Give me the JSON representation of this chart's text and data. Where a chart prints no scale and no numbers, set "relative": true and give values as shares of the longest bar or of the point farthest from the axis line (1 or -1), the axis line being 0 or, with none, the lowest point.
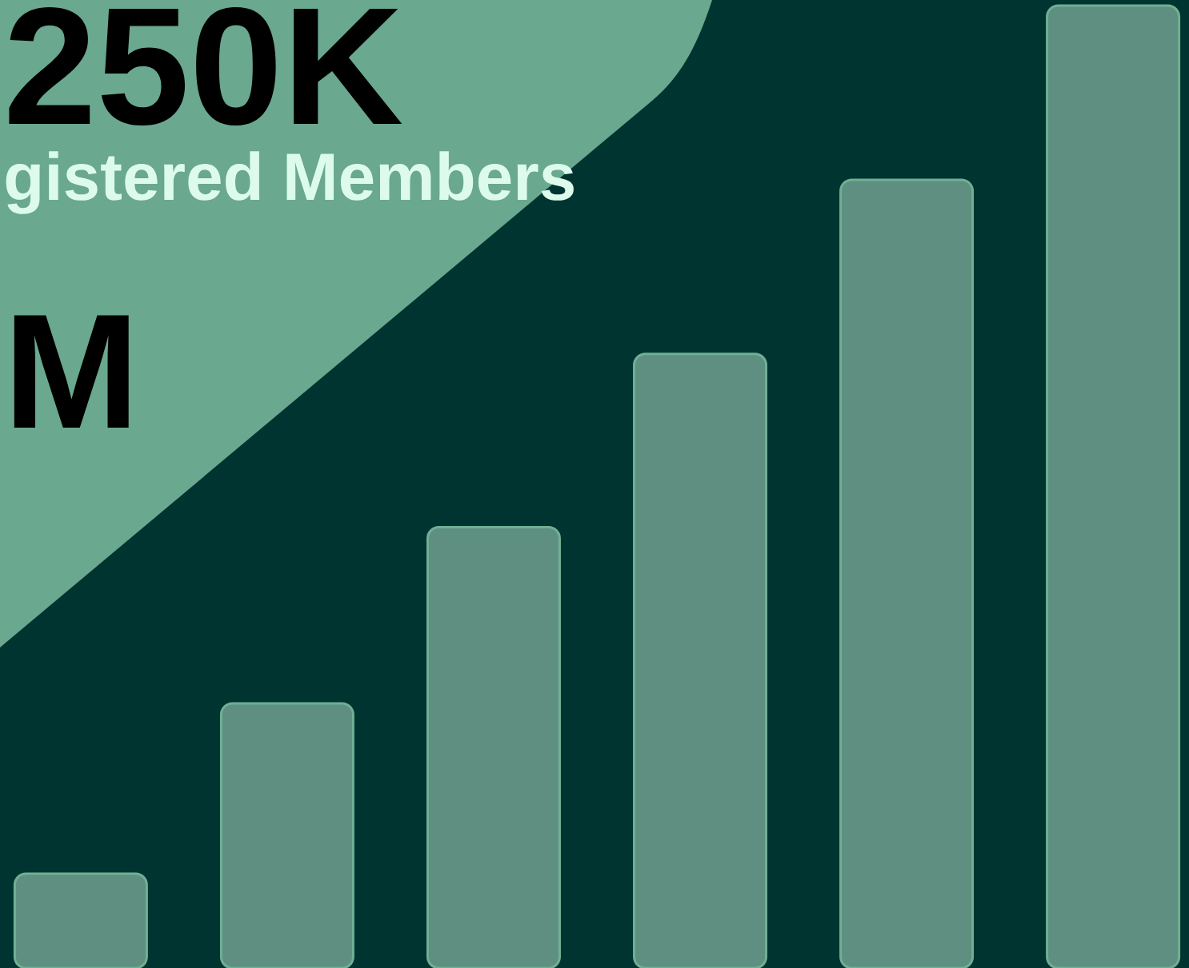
{
  "chart_data": {
    "type": "bar",
    "relative": true,
    "categories": [
      null,
      null,
      null,
      null,
      null,
      null
    ],
    "values": [
      0.098,
      0.275,
      0.458,
      0.638,
      0.819,
      1
    ],
    "color": "#5e8f80",
    "annotations": [
      "250K",
      "gistered Members",
      "M"
    ]
  }
}
